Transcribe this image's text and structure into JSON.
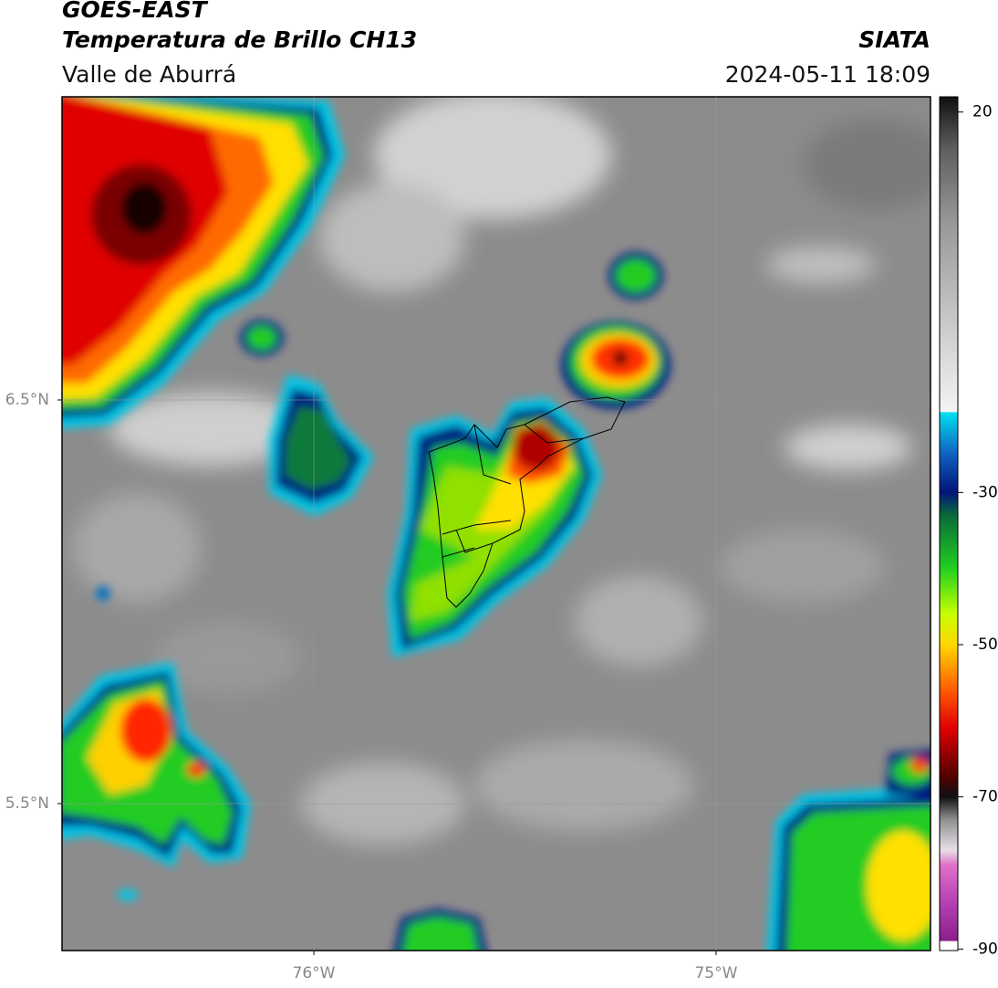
{
  "header": {
    "title": "GOES-EAST",
    "subtitle": "Temperatura de Brillo CH13",
    "region": "Valle de Aburrá",
    "agency": "SIATA",
    "datetime": "2024-05-11 18:09"
  },
  "map": {
    "xlim": [
      -76.626,
      -74.467
    ],
    "ylim": [
      5.136,
      7.251
    ],
    "xticks": [
      {
        "value": -76,
        "label": "76°W"
      },
      {
        "value": -75,
        "label": "75°W"
      }
    ],
    "yticks": [
      {
        "value": 6.5,
        "label": "6.5°N"
      },
      {
        "value": 5.5,
        "label": "5.5°N"
      }
    ],
    "grid": true
  },
  "colorbar": {
    "lim": [
      -90.2,
      22
    ],
    "ticks": [
      20,
      -30,
      -50,
      -70,
      -90
    ],
    "colormap": [
      {
        "value": -90.2,
        "color": "#ffffff"
      },
      {
        "value": -89,
        "color": "#ffffff"
      },
      {
        "value": -88.9,
        "color": "#8a1f8a"
      },
      {
        "value": -84,
        "color": "#b340b3"
      },
      {
        "value": -79,
        "color": "#e070c8"
      },
      {
        "value": -77,
        "color": "#e8e0e8"
      },
      {
        "value": -73,
        "color": "#909090"
      },
      {
        "value": -70,
        "color": "#101010"
      },
      {
        "value": -67,
        "color": "#5a0000"
      },
      {
        "value": -61,
        "color": "#e00000"
      },
      {
        "value": -56,
        "color": "#ff5a00"
      },
      {
        "value": -50,
        "color": "#ffd800"
      },
      {
        "value": -46,
        "color": "#c8ff00"
      },
      {
        "value": -40,
        "color": "#20d020"
      },
      {
        "value": -33,
        "color": "#0a6a3a"
      },
      {
        "value": -30,
        "color": "#00157a"
      },
      {
        "value": -25,
        "color": "#1060c0"
      },
      {
        "value": -19.5,
        "color": "#00e0f0"
      },
      {
        "value": -19.4,
        "color": "#f4f4f4"
      },
      {
        "value": 5,
        "color": "#9a9a9a"
      },
      {
        "value": 15,
        "color": "#606060"
      },
      {
        "value": 22,
        "color": "#101010"
      }
    ]
  }
}
